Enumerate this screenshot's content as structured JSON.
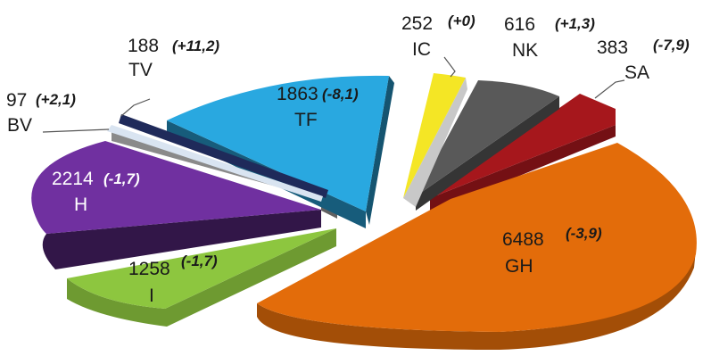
{
  "chart_data": {
    "type": "pie",
    "title": "",
    "unit_note": "",
    "categories": [
      "GH",
      "I",
      "H",
      "BV",
      "TV",
      "TF",
      "IC",
      "NK",
      "SA"
    ],
    "values": [
      6488,
      1258,
      2214,
      97,
      188,
      1863,
      252,
      616,
      383
    ],
    "changes": [
      "(-3,9)",
      "(-1,7)",
      "(-1,7)",
      "(+2,1)",
      "(+11,2)",
      "(-8,1)",
      "(+0)",
      "(+1,3)",
      "(-7,9)"
    ],
    "style": "exploded-3d",
    "colors": {
      "GH": "#e36c0a",
      "I": "#8dc63f",
      "H": "#7030a0",
      "BV": "#d9e4f1",
      "TV": "#1f2a5a",
      "TF": "#29a8e0",
      "IC": "#f4e625",
      "NK": "#595959",
      "SA": "#a6171c",
      "grey_sliver": "#8a8a8a",
      "ic_side": "#c8c8c8"
    },
    "legend": "none"
  }
}
